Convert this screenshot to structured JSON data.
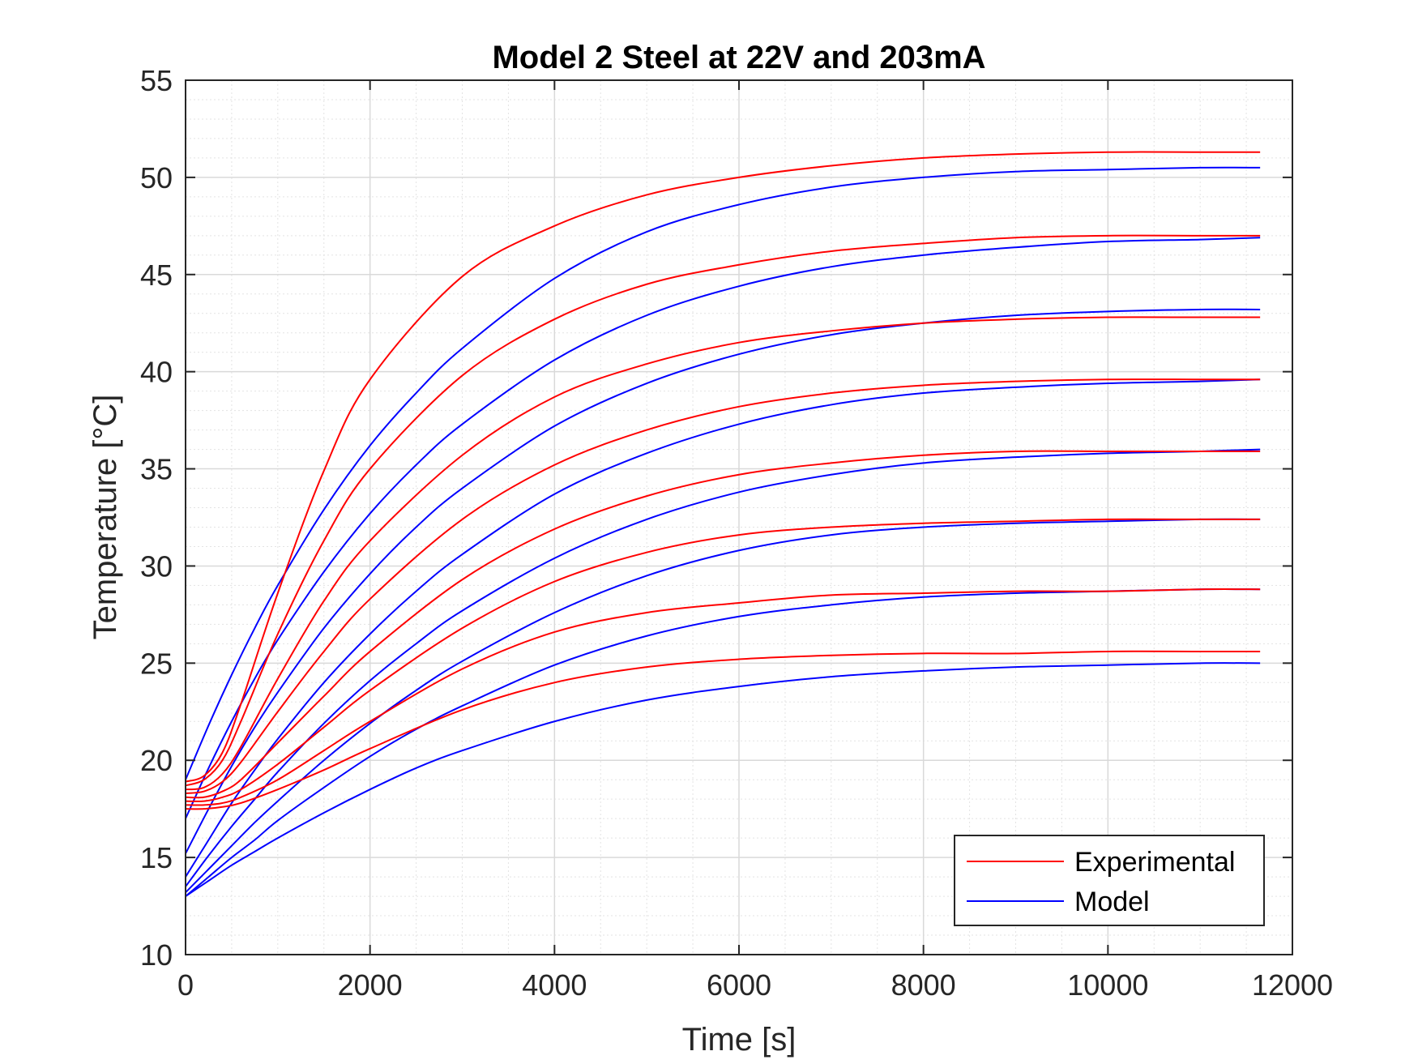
{
  "chart_data": {
    "type": "line",
    "title": "Model 2 Steel at 22V and 203mA",
    "xlabel": "Time [s]",
    "ylabel": "Temperature [°C]",
    "xlim": [
      0,
      12000
    ],
    "ylim": [
      10,
      55
    ],
    "xticks": [
      0,
      2000,
      4000,
      6000,
      8000,
      10000,
      12000
    ],
    "xtick_labels": [
      "0",
      "2000",
      "4000",
      "6000",
      "8000",
      "10000",
      "12000"
    ],
    "yticks": [
      10,
      15,
      20,
      25,
      30,
      35,
      40,
      45,
      50,
      55
    ],
    "ytick_labels": [
      "10",
      "15",
      "20",
      "25",
      "30",
      "35",
      "40",
      "45",
      "50",
      "55"
    ],
    "grid": true,
    "minor_grid": true,
    "legend_position": "bottom-right",
    "legend": [
      "Experimental",
      "Model"
    ],
    "colors": {
      "experimental": "#ff0000",
      "model": "#0000ff",
      "axes": "#262626",
      "grid": "#d9d9d9"
    },
    "series": [
      {
        "name": "Experimental",
        "x": [
          0,
          200,
          400,
          600,
          1000,
          1500,
          2000,
          3000,
          4000,
          5000,
          6000,
          7000,
          8000,
          9000,
          10000,
          11000,
          11650
        ],
        "values": [
          18.9,
          19.2,
          20.4,
          22.9,
          28.6,
          34.9,
          39.6,
          44.9,
          47.5,
          49.1,
          50.0,
          50.6,
          51.0,
          51.2,
          51.3,
          51.3,
          51.3
        ]
      },
      {
        "name": "Experimental",
        "x": [
          0,
          200,
          400,
          600,
          1000,
          1500,
          2000,
          3000,
          4000,
          5000,
          6000,
          7000,
          8000,
          9000,
          10000,
          11000,
          11650
        ],
        "values": [
          18.7,
          19.0,
          20.0,
          22.0,
          26.5,
          31.3,
          35.0,
          39.8,
          42.7,
          44.5,
          45.5,
          46.2,
          46.6,
          46.9,
          47.0,
          47.0,
          47.0
        ]
      },
      {
        "name": "Experimental",
        "x": [
          0,
          200,
          400,
          600,
          1000,
          1500,
          2000,
          3000,
          4000,
          5000,
          6000,
          7000,
          8000,
          9000,
          10000,
          11000,
          11650
        ],
        "values": [
          18.5,
          18.6,
          19.3,
          20.7,
          24.2,
          28.2,
          31.3,
          35.7,
          38.7,
          40.4,
          41.5,
          42.1,
          42.5,
          42.7,
          42.8,
          42.8,
          42.8
        ]
      },
      {
        "name": "Experimental",
        "x": [
          0,
          200,
          400,
          600,
          1000,
          1500,
          2000,
          3000,
          4000,
          5000,
          6000,
          7000,
          8000,
          9000,
          10000,
          11000,
          11650
        ],
        "values": [
          18.3,
          18.4,
          18.9,
          19.9,
          22.5,
          25.6,
          28.3,
          32.4,
          35.2,
          37.0,
          38.2,
          38.9,
          39.3,
          39.5,
          39.6,
          39.6,
          39.6
        ]
      },
      {
        "name": "Experimental",
        "x": [
          0,
          200,
          400,
          600,
          1000,
          1500,
          2000,
          3000,
          4000,
          5000,
          6000,
          7000,
          8000,
          9000,
          10000,
          11000,
          11650
        ],
        "values": [
          18.1,
          18.1,
          18.4,
          19.0,
          20.9,
          23.3,
          25.6,
          29.3,
          31.9,
          33.6,
          34.7,
          35.3,
          35.7,
          35.9,
          35.9,
          35.9,
          35.9
        ]
      },
      {
        "name": "Experimental",
        "x": [
          0,
          200,
          400,
          600,
          1000,
          1500,
          2000,
          3000,
          4000,
          5000,
          6000,
          7000,
          8000,
          9000,
          10000,
          11000,
          11650
        ],
        "values": [
          17.9,
          17.9,
          18.1,
          18.5,
          19.8,
          21.7,
          23.6,
          26.8,
          29.2,
          30.7,
          31.6,
          32.0,
          32.2,
          32.3,
          32.4,
          32.4,
          32.4
        ]
      },
      {
        "name": "Experimental",
        "x": [
          0,
          200,
          400,
          600,
          1000,
          1500,
          2000,
          3000,
          4000,
          5000,
          6000,
          7000,
          8000,
          9000,
          10000,
          11000,
          11650
        ],
        "values": [
          17.7,
          17.7,
          17.8,
          18.1,
          19.0,
          20.5,
          22.0,
          24.7,
          26.6,
          27.6,
          28.1,
          28.5,
          28.6,
          28.7,
          28.7,
          28.8,
          28.8
        ]
      },
      {
        "name": "Experimental",
        "x": [
          0,
          200,
          400,
          600,
          1000,
          1500,
          2000,
          3000,
          4000,
          5000,
          6000,
          7000,
          8000,
          9000,
          10000,
          11000,
          11650
        ],
        "values": [
          17.5,
          17.5,
          17.6,
          17.8,
          18.5,
          19.5,
          20.6,
          22.6,
          24.0,
          24.8,
          25.2,
          25.4,
          25.5,
          25.5,
          25.6,
          25.6,
          25.6
        ]
      },
      {
        "name": "Model",
        "x": [
          0,
          250,
          500,
          750,
          1000,
          1500,
          2000,
          2500,
          3000,
          4000,
          5000,
          6000,
          7000,
          8000,
          9000,
          10000,
          11000,
          11650
        ],
        "values": [
          19.0,
          21.8,
          24.4,
          26.8,
          29.0,
          32.9,
          36.2,
          38.9,
          41.2,
          44.8,
          47.2,
          48.6,
          49.5,
          50.0,
          50.3,
          50.4,
          50.5,
          50.5
        ]
      },
      {
        "name": "Model",
        "x": [
          0,
          250,
          500,
          750,
          1000,
          1500,
          2000,
          2500,
          3000,
          4000,
          5000,
          6000,
          7000,
          8000,
          9000,
          10000,
          11000,
          11650
        ],
        "values": [
          17.0,
          19.6,
          22.0,
          24.2,
          26.2,
          29.7,
          32.7,
          35.2,
          37.3,
          40.6,
          42.9,
          44.4,
          45.4,
          46.0,
          46.4,
          46.7,
          46.8,
          46.9
        ]
      },
      {
        "name": "Model",
        "x": [
          0,
          250,
          500,
          750,
          1000,
          1500,
          2000,
          2500,
          3000,
          4000,
          5000,
          6000,
          7000,
          8000,
          9000,
          10000,
          11000,
          11650
        ],
        "values": [
          15.2,
          17.5,
          19.7,
          21.7,
          23.5,
          26.8,
          29.6,
          32.0,
          34.0,
          37.2,
          39.4,
          40.9,
          41.9,
          42.5,
          42.9,
          43.1,
          43.2,
          43.2
        ]
      },
      {
        "name": "Model",
        "x": [
          0,
          250,
          500,
          750,
          1000,
          1500,
          2000,
          2500,
          3000,
          4000,
          5000,
          6000,
          7000,
          8000,
          9000,
          10000,
          11000,
          11650
        ],
        "values": [
          14.0,
          15.9,
          17.8,
          19.5,
          21.1,
          24.0,
          26.5,
          28.7,
          30.6,
          33.7,
          35.8,
          37.3,
          38.3,
          38.9,
          39.2,
          39.4,
          39.5,
          39.6
        ]
      },
      {
        "name": "Model",
        "x": [
          0,
          250,
          500,
          750,
          1000,
          1500,
          2000,
          2500,
          3000,
          4000,
          5000,
          6000,
          7000,
          8000,
          9000,
          10000,
          11000,
          11650
        ],
        "values": [
          13.5,
          15.1,
          16.6,
          18.0,
          19.4,
          21.9,
          24.1,
          26.0,
          27.7,
          30.4,
          32.4,
          33.8,
          34.7,
          35.3,
          35.6,
          35.8,
          35.9,
          36.0
        ]
      },
      {
        "name": "Model",
        "x": [
          0,
          250,
          500,
          750,
          1000,
          1500,
          2000,
          2500,
          3000,
          4000,
          5000,
          6000,
          7000,
          8000,
          9000,
          10000,
          11000,
          11650
        ],
        "values": [
          13.2,
          14.4,
          15.6,
          16.8,
          17.9,
          20.0,
          21.9,
          23.6,
          25.1,
          27.6,
          29.5,
          30.8,
          31.6,
          32.0,
          32.2,
          32.3,
          32.4,
          32.4
        ]
      },
      {
        "name": "Model",
        "x": [
          0,
          250,
          500,
          750,
          1000,
          1500,
          2000,
          2500,
          3000,
          4000,
          5000,
          6000,
          7000,
          8000,
          9000,
          10000,
          11000,
          11650
        ],
        "values": [
          13.0,
          14.0,
          15.0,
          15.9,
          16.9,
          18.6,
          20.2,
          21.6,
          22.8,
          24.9,
          26.4,
          27.4,
          28.0,
          28.4,
          28.6,
          28.7,
          28.8,
          28.8
        ]
      },
      {
        "name": "Model",
        "x": [
          0,
          250,
          500,
          750,
          1000,
          1500,
          2000,
          2500,
          3000,
          4000,
          5000,
          6000,
          7000,
          8000,
          9000,
          10000,
          11000,
          11650
        ],
        "values": [
          13.0,
          13.8,
          14.6,
          15.3,
          16.0,
          17.3,
          18.5,
          19.6,
          20.5,
          22.0,
          23.1,
          23.8,
          24.3,
          24.6,
          24.8,
          24.9,
          25.0,
          25.0
        ]
      }
    ]
  }
}
